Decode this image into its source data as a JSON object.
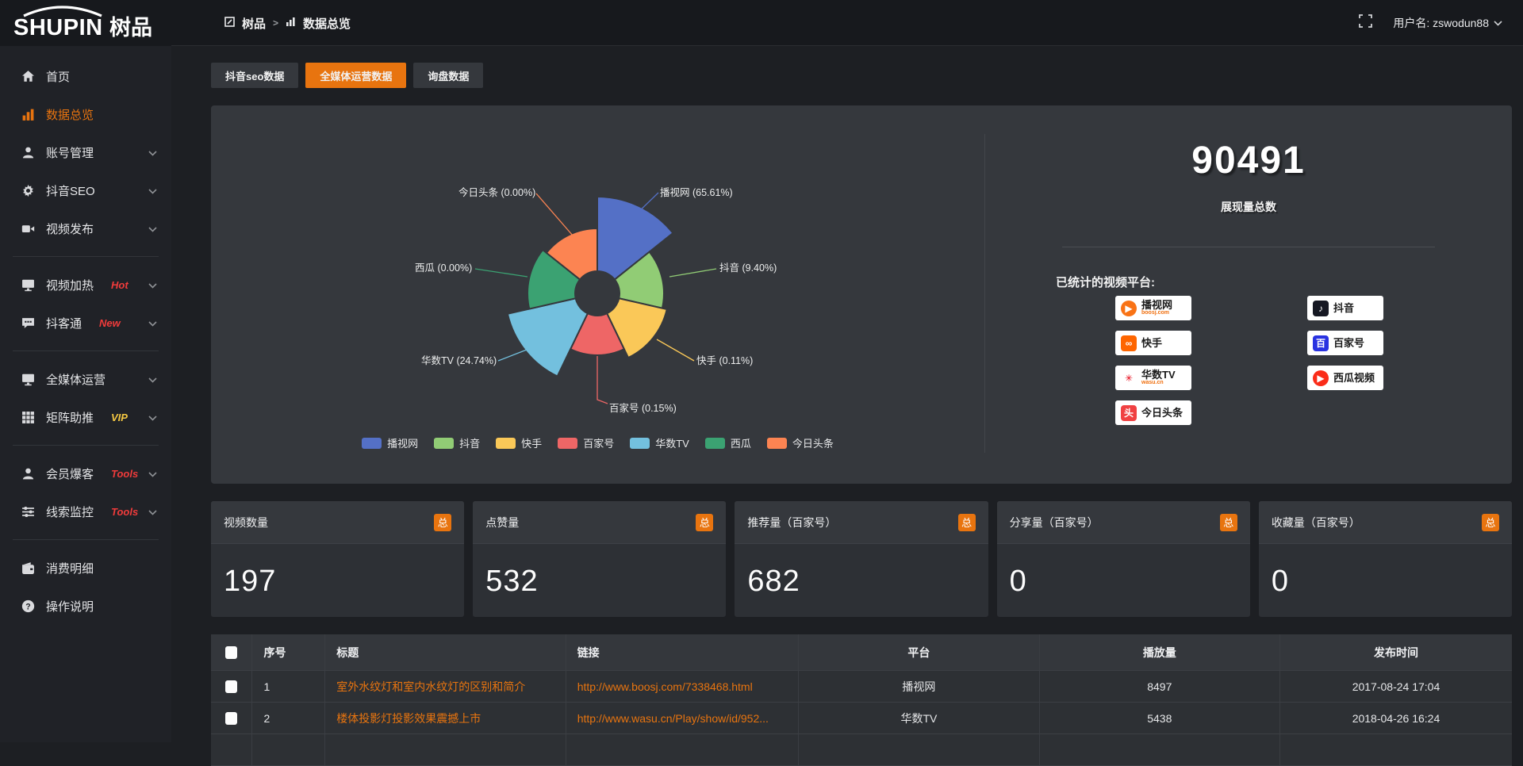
{
  "topbar": {
    "logo_text": "SHUPIN",
    "logo_cn": "树品",
    "breadcrumb": [
      {
        "label": "树品"
      },
      {
        "label": "数据总览"
      }
    ],
    "username_label": "用户名: zswodun88"
  },
  "sidebar": {
    "items": [
      {
        "label": "首页",
        "icon": "home"
      },
      {
        "label": "数据总览",
        "icon": "chart",
        "active": true
      },
      {
        "label": "账号管理",
        "icon": "user",
        "chevron": true
      },
      {
        "label": "抖音SEO",
        "icon": "gear",
        "chevron": true
      },
      {
        "label": "视频发布",
        "icon": "video",
        "chevron": true
      },
      {
        "divider": true
      },
      {
        "label": "视频加热",
        "icon": "heat",
        "tag": "Hot",
        "tag_color": "#f03b3b",
        "chevron": true
      },
      {
        "label": "抖客通",
        "icon": "chat",
        "tag": "New",
        "tag_color": "#f03b3b",
        "chevron": true
      },
      {
        "divider": true
      },
      {
        "label": "全媒体运营",
        "icon": "screen",
        "chevron": true
      },
      {
        "label": "矩阵助推",
        "icon": "grid",
        "tag": "VIP",
        "tag_color": "#f5c842",
        "chevron": true
      },
      {
        "divider": true
      },
      {
        "label": "会员爆客",
        "icon": "person",
        "tag": "Tools",
        "tag_color": "#f03b3b",
        "chevron": true
      },
      {
        "label": "线索监控",
        "icon": "sliders",
        "tag": "Tools",
        "tag_color": "#f03b3b",
        "chevron": true
      },
      {
        "divider": true
      },
      {
        "label": "消费明细",
        "icon": "wallet"
      },
      {
        "label": "操作说明",
        "icon": "help"
      }
    ]
  },
  "tabs": [
    {
      "label": "抖音seo数据",
      "active": false
    },
    {
      "label": "全媒体运营数据",
      "active": true
    },
    {
      "label": "询盘数据",
      "active": false
    }
  ],
  "chart_data": {
    "type": "pie",
    "rose": true,
    "title": "",
    "legend_position": "bottom",
    "series": [
      {
        "name": "播视网",
        "value": 65.61,
        "pct_label": "65.61"
      },
      {
        "name": "抖音",
        "value": 9.4,
        "pct_label": "9.40"
      },
      {
        "name": "快手",
        "value": 0.11,
        "pct_label": "0.11"
      },
      {
        "name": "百家号",
        "value": 0.15,
        "pct_label": "0.15"
      },
      {
        "name": "华数TV",
        "value": 24.74,
        "pct_label": "24.74"
      },
      {
        "name": "西瓜",
        "value": 0.0,
        "pct_label": "0.00"
      },
      {
        "name": "今日头条",
        "value": 0.0,
        "pct_label": "0.00"
      }
    ],
    "colors": [
      "#5470c6",
      "#91cc75",
      "#fac858",
      "#ee6666",
      "#73c0de",
      "#3ba272",
      "#fc8452"
    ]
  },
  "right_panel": {
    "total": "90491",
    "total_label": "展现量总数",
    "platforms_label": "已统计的视频平台:",
    "platforms_left": [
      {
        "label": "播视网",
        "sub": "boosj.com",
        "icon": "boosj",
        "color": "#f97316",
        "glyph": "▶",
        "shape": "circle"
      },
      {
        "label": "快手",
        "icon": "kuaishou",
        "color": "#fe6500",
        "glyph": "∞",
        "shape": "square"
      },
      {
        "label": "华数TV",
        "sub": "wasu.cn",
        "icon": "wasu",
        "color": "#ffffff",
        "glyph": "✳",
        "glyph_color": "#e60012",
        "shape": "square"
      },
      {
        "label": "今日头条",
        "icon": "toutiao",
        "color": "#f04142",
        "glyph": "头",
        "shape": "square"
      }
    ],
    "platforms_right": [
      {
        "label": "抖音",
        "icon": "douyin",
        "color": "#161823",
        "glyph": "♪",
        "shape": "square"
      },
      {
        "label": "百家号",
        "icon": "baijiahao",
        "color": "#2932e1",
        "glyph": "百",
        "shape": "square"
      },
      {
        "label": "西瓜视频",
        "icon": "xigua",
        "color": "#fa2c19",
        "glyph": "▶",
        "shape": "circle"
      }
    ]
  },
  "stat_cards": [
    {
      "label": "视频数量",
      "badge": "总",
      "value": "197"
    },
    {
      "label": "点赞量",
      "badge": "总",
      "value": "532"
    },
    {
      "label": "推荐量（百家号）",
      "badge": "总",
      "value": "682"
    },
    {
      "label": "分享量（百家号）",
      "badge": "总",
      "value": "0"
    },
    {
      "label": "收藏量（百家号）",
      "badge": "总",
      "value": "0"
    }
  ],
  "table": {
    "columns": [
      "序号",
      "标题",
      "链接",
      "平台",
      "播放量",
      "发布时间"
    ],
    "rows": [
      {
        "seq": "1",
        "title": "室外水纹灯和室内水纹灯的区别和简介",
        "link": "http://www.boosj.com/7338468.html",
        "platform": "播视网",
        "plays": "8497",
        "time": "2017-08-24 17:04"
      },
      {
        "seq": "2",
        "title": "楼体投影灯投影效果震撼上市",
        "link": "http://www.wasu.cn/Play/show/id/952...",
        "platform": "华数TV",
        "plays": "5438",
        "time": "2018-04-26 16:24"
      }
    ]
  },
  "colors": {
    "accent": "#e8740f",
    "panel": "#35383d",
    "topbar": "#17191d",
    "sidebar": "#202227"
  }
}
